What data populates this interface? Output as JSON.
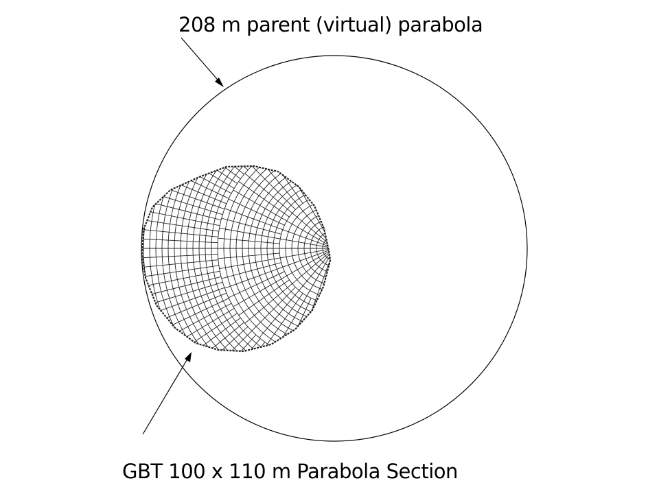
{
  "labels": {
    "parent": "208 m parent (virtual) parabola",
    "section": "GBT 100 x 110 m Parabola Section"
  },
  "colors": {
    "background": "#ffffff",
    "ink": "#000000",
    "mesh": "#222222"
  }
}
